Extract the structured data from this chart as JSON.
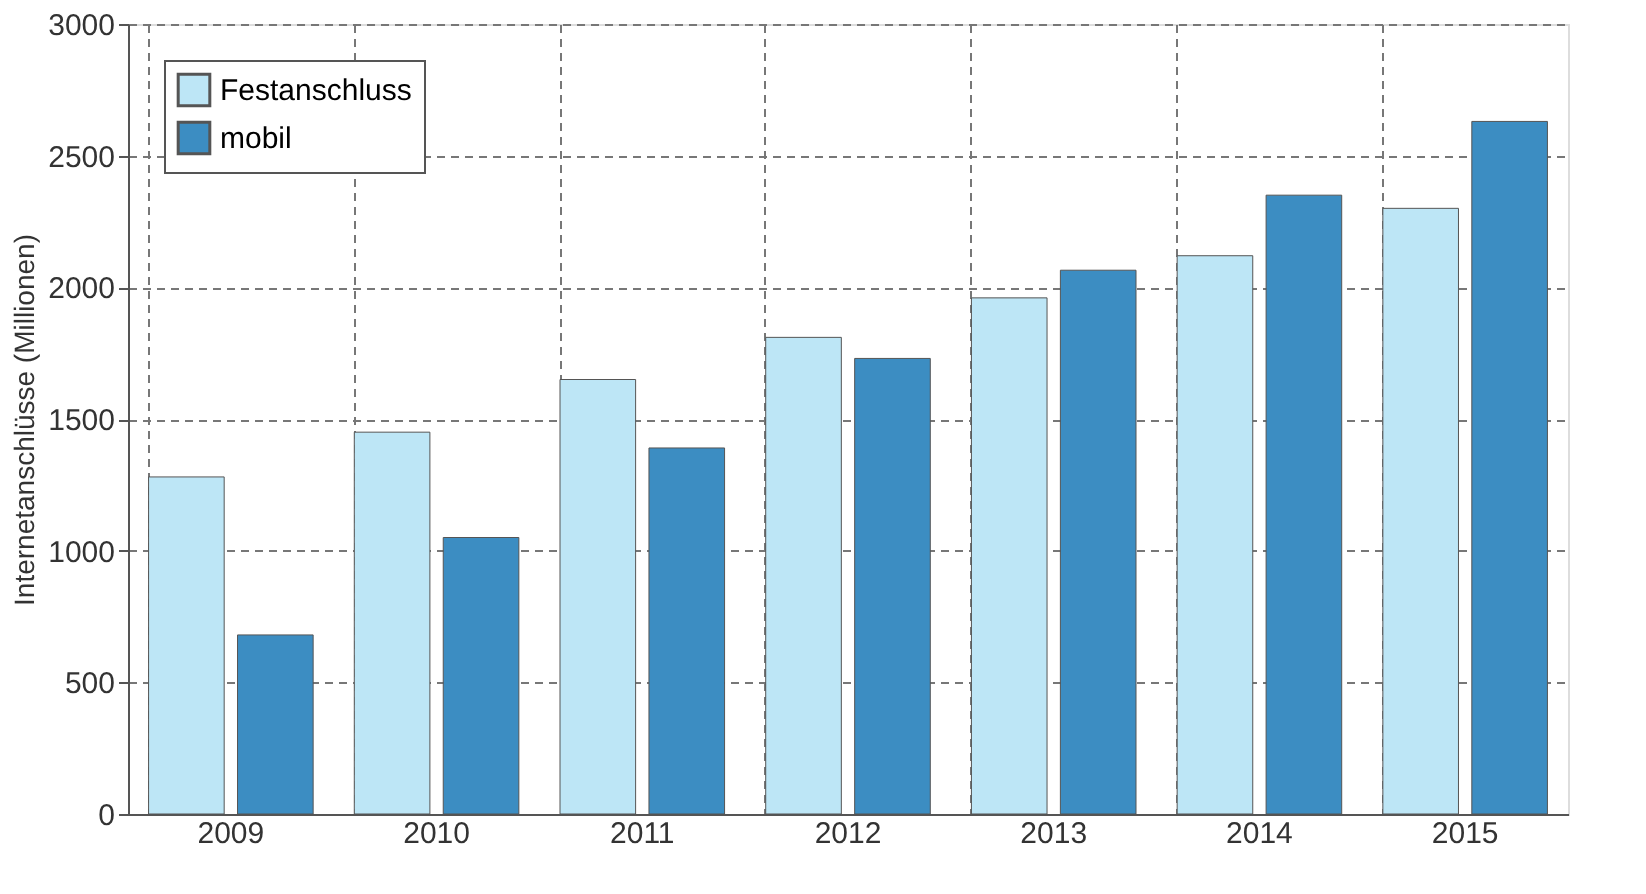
{
  "chart_data": {
    "type": "bar",
    "ylabel": "Internetanschlüsse (Millionen)",
    "categories": [
      "2009",
      "2010",
      "2011",
      "2012",
      "2013",
      "2014",
      "2015"
    ],
    "series": [
      {
        "name": "Festanschluss",
        "color": "#bde6f6",
        "values": [
          1280,
          1450,
          1650,
          1810,
          1960,
          2120,
          2300
        ]
      },
      {
        "name": "mobil",
        "color": "#3c8dc2",
        "values": [
          680,
          1050,
          1390,
          1730,
          2065,
          2350,
          2630
        ]
      }
    ],
    "ylim": [
      0,
      3000
    ],
    "yticks": [
      0,
      500,
      1000,
      1500,
      2000,
      2500,
      3000
    ],
    "grid": true,
    "legend": "top left"
  }
}
